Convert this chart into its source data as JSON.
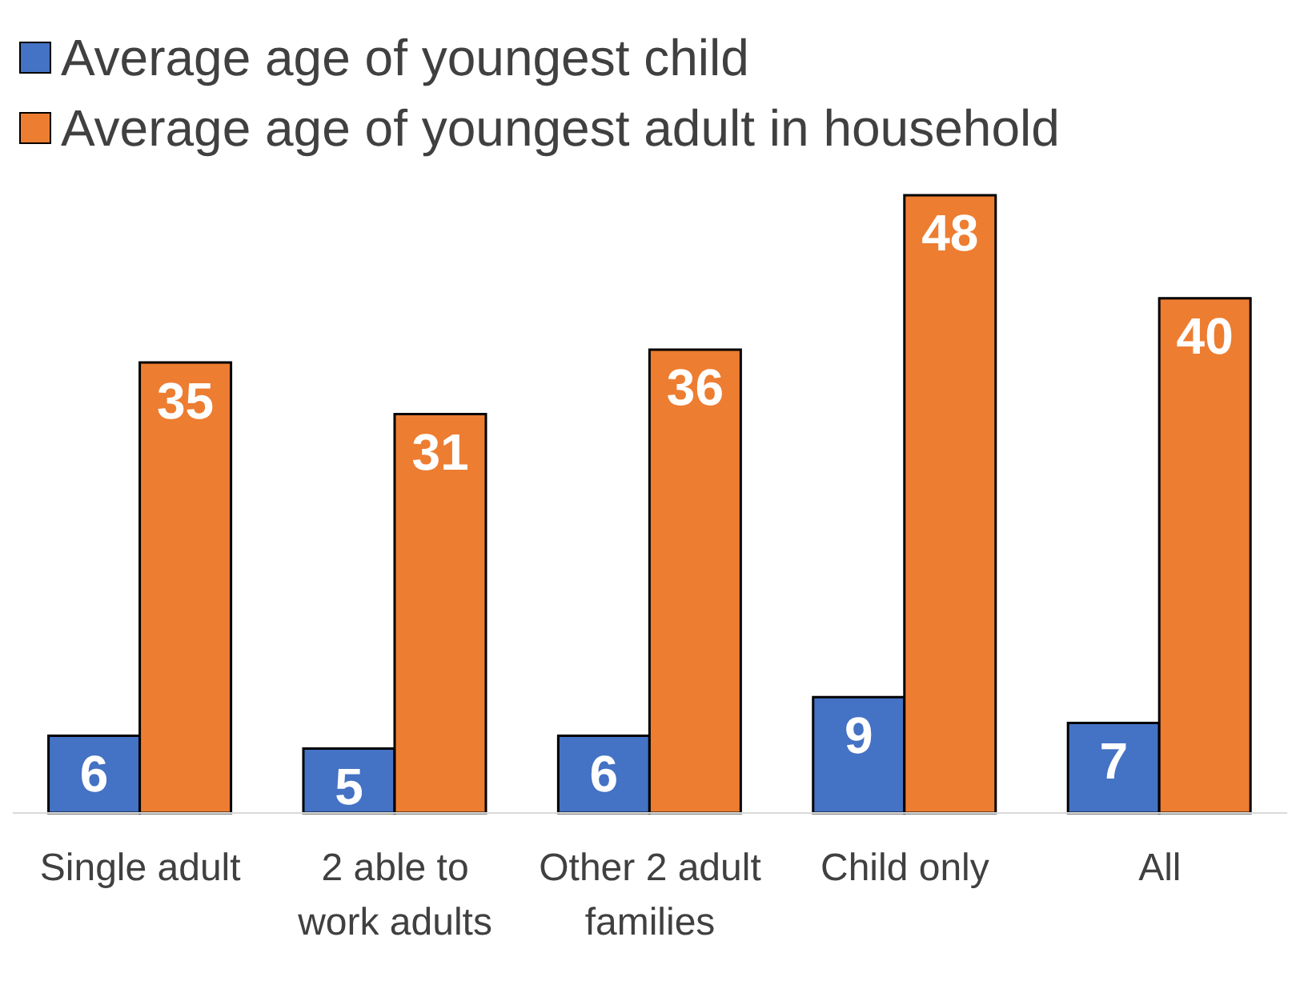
{
  "chart_data": {
    "type": "bar",
    "categories": [
      "Single adult",
      "2 able to work adults",
      "Other 2 adult families",
      "Child only",
      "All"
    ],
    "series": [
      {
        "name": "Average age of youngest child",
        "color": "#4472c4",
        "values": [
          6,
          5,
          6,
          9,
          7
        ]
      },
      {
        "name": "Average age of youngest adult in household",
        "color": "#ed7d31",
        "values": [
          35,
          31,
          36,
          48,
          40
        ]
      }
    ],
    "data_labels": true,
    "legend": "top left",
    "grid": false
  }
}
